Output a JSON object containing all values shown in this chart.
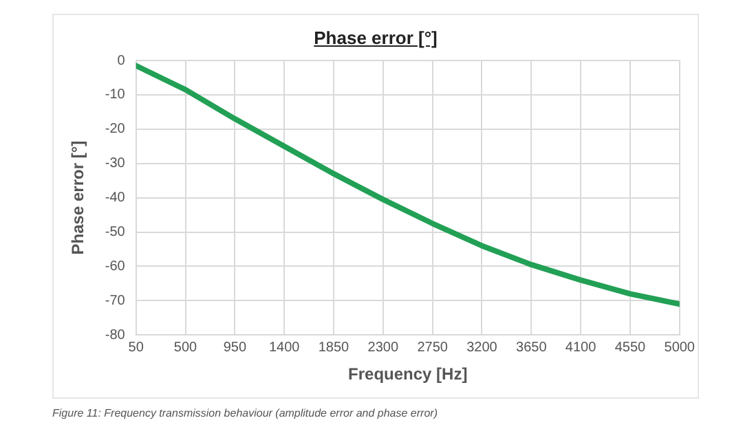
{
  "chart_data": {
    "type": "line",
    "title": "Phase error [°]",
    "xlabel": "Frequency [Hz]",
    "ylabel": "Phase error [°]",
    "x": [
      50,
      500,
      950,
      1400,
      1850,
      2300,
      2750,
      3200,
      3650,
      4100,
      4550,
      5000
    ],
    "series": [
      {
        "color": "#22a055",
        "values": [
          -1.5,
          -8.5,
          -17,
          -25,
          -33,
          -40.5,
          -47.5,
          -54,
          -59.5,
          -64,
          -68,
          -71
        ]
      }
    ],
    "xlim": [
      50,
      5000
    ],
    "xticks": [
      50,
      500,
      950,
      1400,
      1850,
      2300,
      2750,
      3200,
      3650,
      4100,
      4550,
      5000
    ],
    "ylim": [
      -80,
      0
    ],
    "yticks": [
      -80,
      -70,
      -60,
      -50,
      -40,
      -30,
      -20,
      -10,
      0
    ],
    "grid": true,
    "legend": false,
    "marker": "none",
    "line_style": "solid",
    "annotations": [
      "Figure 11: Frequency transmission behaviour (amplitude error and phase error)"
    ]
  }
}
